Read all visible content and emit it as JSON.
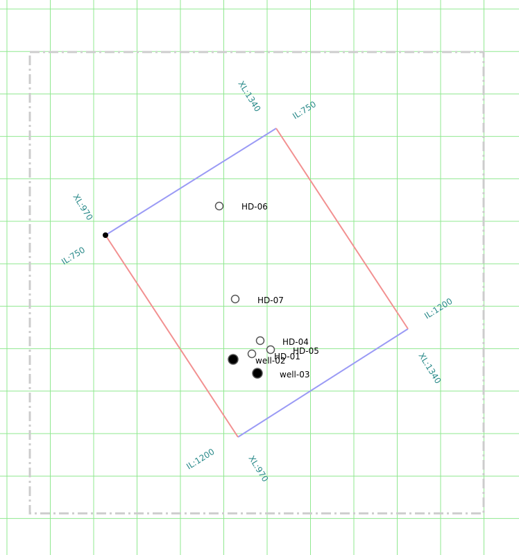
{
  "survey_labels": [
    "XL:1340",
    "IL:750",
    "XL:970",
    "IL:750",
    "IL:1200",
    "XL:1340",
    "IL:1200",
    "XL:970"
  ],
  "wells": [
    {
      "label": "HD-06",
      "filled": false
    },
    {
      "label": "HD-07",
      "filled": false
    },
    {
      "label": "HD-04",
      "filled": false
    },
    {
      "label": "HD-05",
      "filled": false
    },
    {
      "label": "HD-01",
      "filled": false
    },
    {
      "label": "well-02",
      "filled": true
    },
    {
      "label": "well-03",
      "filled": true
    }
  ]
}
